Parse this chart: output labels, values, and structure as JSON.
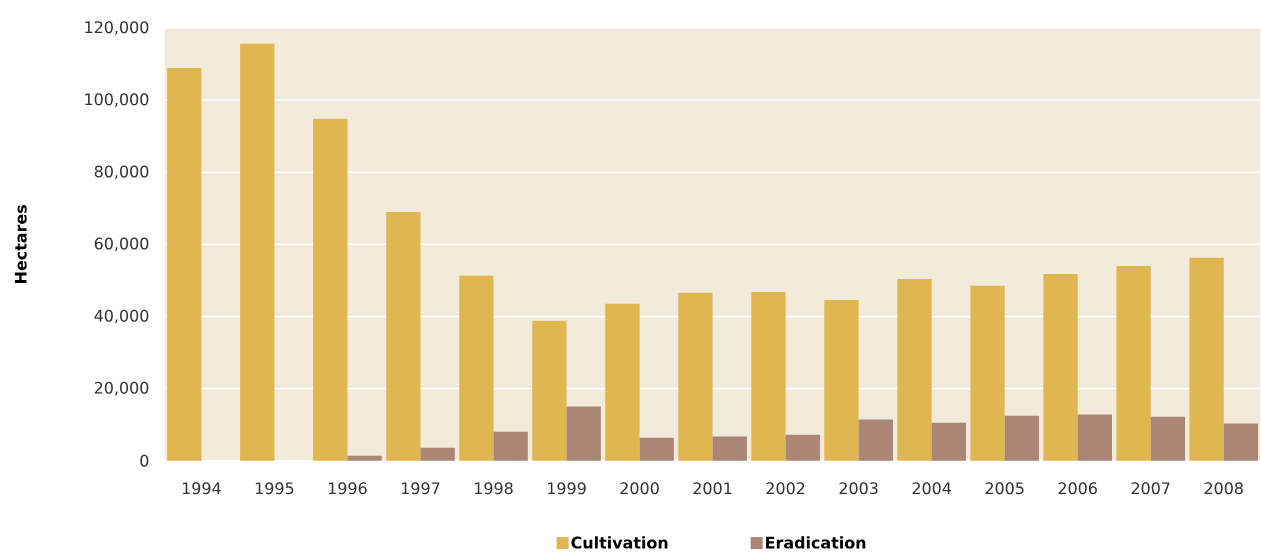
{
  "chart_data": {
    "type": "bar",
    "ylabel": "Hectares",
    "categories": [
      "1994",
      "1995",
      "1996",
      "1997",
      "1998",
      "1999",
      "2000",
      "2001",
      "2002",
      "2003",
      "2004",
      "2005",
      "2006",
      "2007",
      "2008"
    ],
    "series": [
      {
        "name": "Cultivation",
        "color": "#e0b650",
        "values": [
          108900,
          115600,
          94800,
          69000,
          51300,
          38800,
          43500,
          46600,
          46800,
          44600,
          50400,
          48500,
          51800,
          54000,
          56300
        ]
      },
      {
        "name": "Eradication",
        "color": "#ab8576",
        "values": [
          0,
          0,
          1400,
          3600,
          8000,
          15000,
          6400,
          6700,
          7200,
          11400,
          10500,
          12500,
          12800,
          12200,
          10300
        ]
      }
    ],
    "ylim": [
      0,
      120000
    ],
    "yticks": [
      {
        "value": 0,
        "label": "0"
      },
      {
        "value": 20000,
        "label": "20,000"
      },
      {
        "value": 40000,
        "label": "40,000"
      },
      {
        "value": 60000,
        "label": "60,000"
      },
      {
        "value": 80000,
        "label": "80,000"
      },
      {
        "value": 100000,
        "label": "100,000"
      },
      {
        "value": 120000,
        "label": "120,000"
      }
    ],
    "grid": "y",
    "legend": "bottom"
  }
}
